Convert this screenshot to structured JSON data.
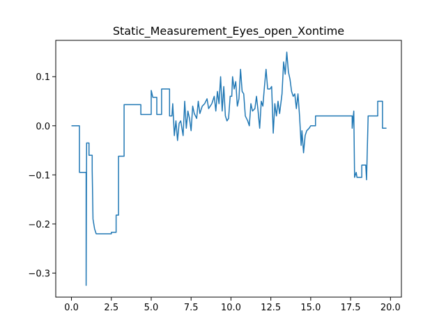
{
  "chart_data": {
    "type": "line",
    "title": "Static_Measurement_Eyes_open_Xontime",
    "xlim": [
      -0.985,
      20.685
    ],
    "ylim": [
      -0.349,
      0.174
    ],
    "xticks": [
      {
        "value": 0,
        "label": "0.0"
      },
      2.5,
      {
        "value": 5,
        "label": "5.0"
      },
      7.5,
      {
        "value": 10,
        "label": "10.0"
      },
      12.5,
      {
        "value": 15,
        "label": "15.0"
      },
      17.5,
      {
        "value": 20,
        "label": "20.0"
      }
    ],
    "yticks": [
      {
        "value": -0.3,
        "label": "−0.3"
      },
      {
        "value": -0.2,
        "label": "−0.2"
      },
      {
        "value": -0.1,
        "label": "−0.1"
      },
      {
        "value": 0,
        "label": "0.0"
      },
      0.1
    ],
    "color": "#1f77b4",
    "x": [
      0,
      0.5,
      0.5,
      0.92,
      0.92,
      0.95,
      1.1,
      1.1,
      1.3,
      1.3,
      1.35,
      1.45,
      1.55,
      2.5,
      2.5,
      2.8,
      2.8,
      2.95,
      2.95,
      3.3,
      3.3,
      4.35,
      4.35,
      5.0,
      5.0,
      5.1,
      5.35,
      5.35,
      5.65,
      5.65,
      6.15,
      6.15,
      6.3,
      6.35,
      6.45,
      6.55,
      6.65,
      6.75,
      6.85,
      7.0,
      7.1,
      7.2,
      7.3,
      7.4,
      7.5,
      7.6,
      7.7,
      7.85,
      7.95,
      8.05,
      8.2,
      8.35,
      8.5,
      8.6,
      8.8,
      8.95,
      9.05,
      9.15,
      9.25,
      9.35,
      9.45,
      9.55,
      9.65,
      9.75,
      9.85,
      9.95,
      10.05,
      10.1,
      10.2,
      10.3,
      10.4,
      10.5,
      10.6,
      10.7,
      10.8,
      10.9,
      11.05,
      11.15,
      11.25,
      11.35,
      11.5,
      11.6,
      11.7,
      11.8,
      11.9,
      12.0,
      12.1,
      12.2,
      12.3,
      12.45,
      12.55,
      12.65,
      12.75,
      12.85,
      12.95,
      13.05,
      13.2,
      13.3,
      13.4,
      13.5,
      13.6,
      13.7,
      13.8,
      13.9,
      14.0,
      14.1,
      14.2,
      14.3,
      14.4,
      14.45,
      14.55,
      14.65,
      14.75,
      14.9,
      15.0,
      15.3,
      15.3,
      17.6,
      17.6,
      17.7,
      17.75,
      17.85,
      17.9,
      18.2,
      18.2,
      18.45,
      18.5,
      18.6,
      19.2,
      19.2,
      19.5,
      19.5,
      19.75
    ],
    "values": [
      0,
      0,
      -0.095,
      -0.095,
      -0.325,
      -0.035,
      -0.035,
      -0.06,
      -0.06,
      -0.09,
      -0.19,
      -0.21,
      -0.22,
      -0.22,
      -0.217,
      -0.217,
      -0.182,
      -0.182,
      -0.062,
      -0.062,
      0.043,
      0.043,
      0.023,
      0.023,
      0.072,
      0.058,
      0.058,
      0.023,
      0.023,
      0.075,
      0.075,
      0.02,
      0.02,
      0.045,
      -0.02,
      0.01,
      -0.03,
      0.005,
      0.01,
      -0.02,
      0.05,
      -0.005,
      0.03,
      0.015,
      -0.01,
      0.04,
      0.025,
      0.015,
      0.05,
      0.025,
      0.04,
      0.045,
      0.055,
      0.035,
      0.045,
      0.06,
      0.03,
      0.07,
      0.045,
      0.1,
      0.03,
      0.08,
      0.02,
      0.01,
      0.015,
      0.06,
      0.06,
      0.1,
      0.075,
      0.09,
      0.04,
      0.055,
      0.115,
      0.07,
      0.065,
      0.02,
      0.01,
      0,
      0.045,
      0.03,
      0.035,
      0.06,
      0.03,
      -0.005,
      0.05,
      0.04,
      0.08,
      0.115,
      0.075,
      0.075,
      0.08,
      -0.015,
      0.045,
      0.02,
      0.05,
      0.025,
      0.065,
      0.13,
      0.105,
      0.15,
      0.11,
      0.095,
      0.07,
      0.06,
      0.065,
      0.035,
      0.065,
      0.02,
      -0.04,
      -0.01,
      -0.055,
      -0.02,
      -0.01,
      -0.005,
      0,
      0,
      0.02,
      0.02,
      -0.005,
      0.03,
      -0.105,
      -0.095,
      -0.105,
      -0.105,
      -0.08,
      -0.08,
      -0.11,
      0.02,
      0.02,
      0.05,
      0.05,
      -0.005,
      -0.005
    ]
  }
}
